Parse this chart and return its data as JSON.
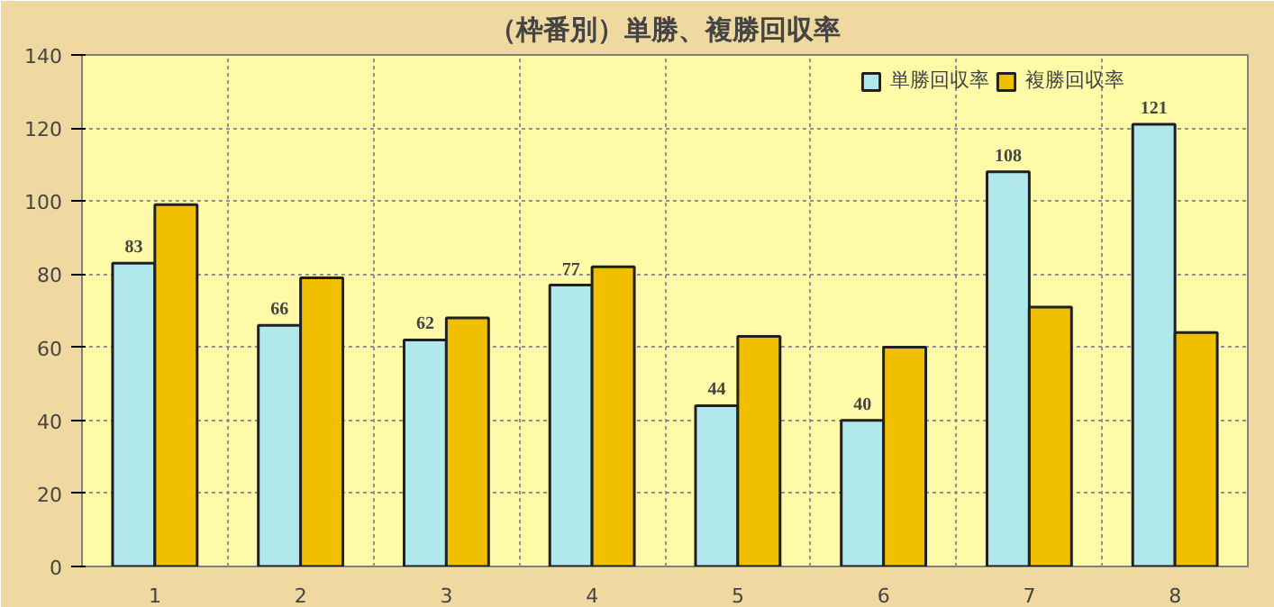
{
  "chart_data": {
    "type": "bar",
    "title": "（枠番別）単勝、複勝回収率",
    "categories": [
      "1",
      "2",
      "3",
      "4",
      "5",
      "6",
      "7",
      "8"
    ],
    "series": [
      {
        "name": "単勝回収率",
        "color": "#b0e8ec",
        "values": [
          83,
          66,
          62,
          77,
          44,
          40,
          108,
          121
        ],
        "value_labels": [
          "83",
          "66",
          "62",
          "77",
          "44",
          "40",
          "108",
          "121"
        ]
      },
      {
        "name": "複勝回収率",
        "color": "#f0c000",
        "values": [
          99,
          79,
          68,
          82,
          63,
          60,
          71,
          64
        ]
      }
    ],
    "ylim": [
      0,
      140
    ],
    "yticks": [
      0,
      20,
      40,
      60,
      80,
      100,
      120,
      140
    ],
    "grid": true,
    "legend": "top right"
  }
}
